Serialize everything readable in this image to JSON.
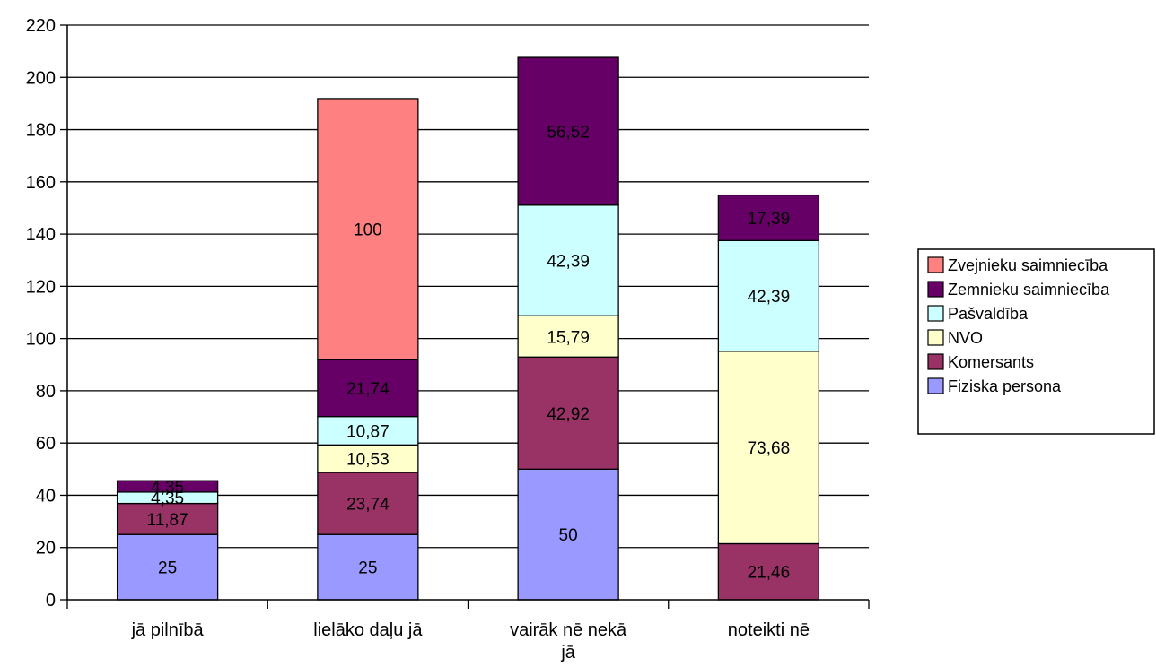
{
  "chart_data": {
    "type": "bar",
    "stacked": true,
    "categories": [
      "jā pilnībā",
      "lielāko daļu jā",
      "vairāk nē nekā jā",
      "noteikti nē"
    ],
    "category_label_lines": [
      [
        "jā pilnībā"
      ],
      [
        "lielāko daļu jā"
      ],
      [
        "vairāk nē nekā",
        "jā"
      ],
      [
        "noteikti nē"
      ]
    ],
    "series": [
      {
        "name": "Fiziska persona",
        "color": "#9999FF",
        "values": [
          25,
          25,
          50,
          0
        ],
        "labels": [
          "25",
          "25",
          "50",
          ""
        ]
      },
      {
        "name": "Komersants",
        "color": "#993366",
        "values": [
          11.87,
          23.74,
          42.92,
          21.46
        ],
        "labels": [
          "11,87",
          "23,74",
          "42,92",
          "21,46"
        ]
      },
      {
        "name": "NVO",
        "color": "#FFFFCC",
        "values": [
          0,
          10.53,
          15.79,
          73.68
        ],
        "labels": [
          "",
          "10,53",
          "15,79",
          "73,68"
        ]
      },
      {
        "name": "Pašvaldība",
        "color": "#CCFFFF",
        "values": [
          4.35,
          10.87,
          42.39,
          42.39
        ],
        "labels": [
          "4,35",
          "10,87",
          "42,39",
          "42,39"
        ]
      },
      {
        "name": "Zemnieku saimniecība",
        "color": "#660066",
        "values": [
          4.35,
          21.74,
          56.52,
          17.39
        ],
        "labels": [
          "4,35",
          "21,74",
          "56,52",
          "17,39"
        ]
      },
      {
        "name": "Zvejnieku saimniecība",
        "color": "#FF8080",
        "values": [
          0,
          100,
          0,
          0
        ],
        "labels": [
          "",
          "100",
          "",
          ""
        ]
      }
    ],
    "legend_order": [
      "Zvejnieku saimniecība",
      "Zemnieku saimniecība",
      "Pašvaldība",
      "NVO",
      "Komersants",
      "Fiziska persona"
    ],
    "ylim": [
      0,
      220
    ],
    "yticks": [
      0,
      20,
      40,
      60,
      80,
      100,
      120,
      140,
      160,
      180,
      200,
      220
    ],
    "grid": true,
    "legend_position": "right",
    "title": "",
    "xlabel": "",
    "ylabel": ""
  }
}
